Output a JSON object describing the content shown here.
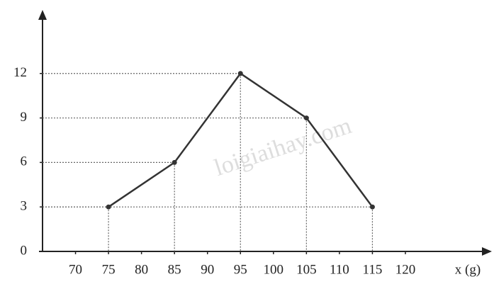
{
  "chart_data": {
    "type": "line",
    "x": [
      75,
      85,
      95,
      105,
      115
    ],
    "series": [
      {
        "color": "#333333",
        "values": [
          3,
          6,
          12,
          9,
          3
        ]
      }
    ],
    "xlim": [
      65,
      133
    ],
    "xticks": [
      70,
      75,
      80,
      85,
      90,
      95,
      100,
      105,
      110,
      115,
      120
    ],
    "ylim": [
      0,
      16
    ],
    "yticks": [
      0,
      3,
      6,
      9,
      12
    ],
    "xlabel": "x (g)",
    "annotation": "loigiaihay.com"
  }
}
